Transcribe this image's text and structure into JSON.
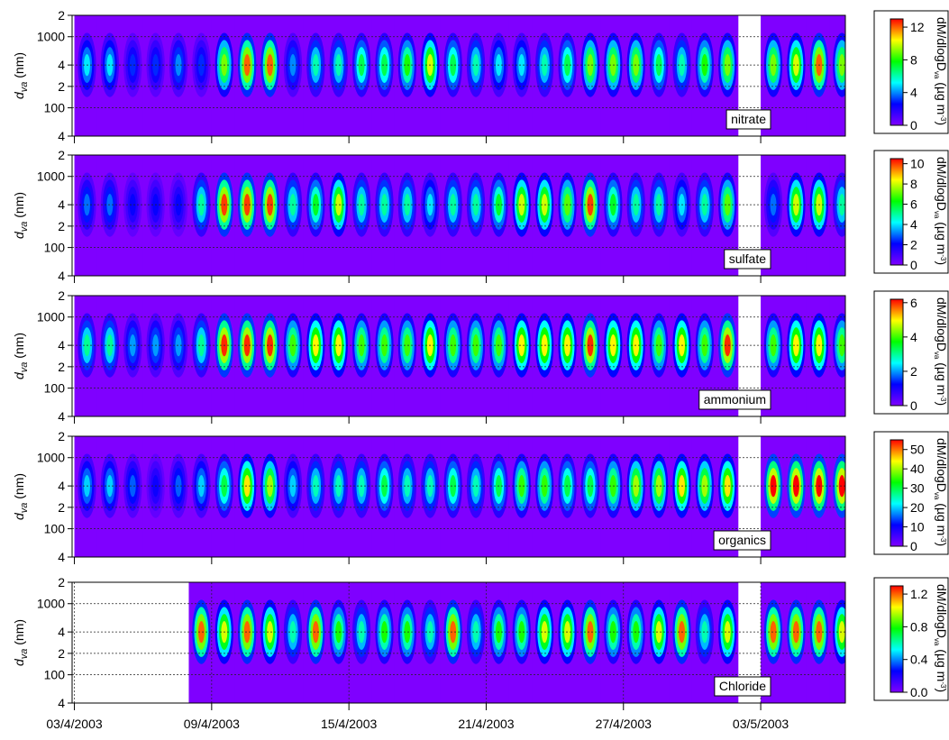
{
  "chart_data": [
    {
      "type": "heatmap",
      "label": "nitrate",
      "x": [
        0,
        1,
        2,
        3,
        4,
        5,
        6,
        7,
        8,
        9,
        10,
        11,
        12,
        13,
        14,
        15,
        16,
        17,
        18,
        19,
        20,
        21,
        22,
        23,
        24,
        25,
        26,
        27,
        28,
        29,
        30,
        31,
        32,
        33
      ],
      "values": [
        5,
        5,
        3,
        3,
        4,
        3,
        9,
        12,
        12,
        4,
        6,
        6,
        7,
        7,
        8,
        10,
        7,
        6,
        5,
        5,
        6,
        7,
        9,
        9,
        9,
        7,
        6,
        8,
        9,
        null,
        9,
        10,
        12,
        9
      ],
      "xlim": [
        -0.1,
        33.7
      ],
      "ylim": [
        40,
        2000
      ],
      "log_y": true,
      "yticks": [
        {
          "value": 2000,
          "label": "2"
        },
        1000,
        {
          "value": 400,
          "label": "4"
        },
        {
          "value": 200,
          "label": "2"
        },
        100,
        {
          "value": 40,
          "label": "4"
        }
      ],
      "ylabel": {
        "text": "d",
        "sub": "va",
        "unit": " (nm)"
      },
      "clim": [
        0,
        13
      ],
      "cticks": [
        0,
        4,
        8,
        12
      ],
      "clabel": {
        "text": "dM/dlogD",
        "sub": "va",
        "unit": " (µg m",
        "sup": "-3",
        "end": ")"
      },
      "colormap": [
        "#7f00ff",
        "#0000ff",
        "#00ffff",
        "#00ff00",
        "#ffff00",
        "#ff0000"
      ],
      "grid": true
    },
    {
      "type": "heatmap",
      "label": "sulfate",
      "x": [
        0,
        1,
        2,
        3,
        4,
        5,
        6,
        7,
        8,
        9,
        10,
        11,
        12,
        13,
        14,
        15,
        16,
        17,
        18,
        19,
        20,
        21,
        22,
        23,
        24,
        25,
        26,
        27,
        28,
        29,
        30,
        31,
        32,
        33
      ],
      "values": [
        3,
        3,
        2,
        2,
        2,
        5,
        10,
        10,
        10,
        5,
        6,
        8,
        5,
        5,
        5,
        4,
        5,
        5,
        6,
        8,
        8,
        7,
        10,
        6,
        5,
        5,
        4,
        5,
        7,
        null,
        3,
        8,
        8,
        5
      ],
      "xlim": [
        -0.1,
        33.7
      ],
      "ylim": [
        40,
        2000
      ],
      "log_y": true,
      "yticks": [
        {
          "value": 2000,
          "label": "2"
        },
        1000,
        {
          "value": 400,
          "label": "4"
        },
        {
          "value": 200,
          "label": "2"
        },
        100,
        {
          "value": 40,
          "label": "4"
        }
      ],
      "ylabel": {
        "text": "d",
        "sub": "va",
        "unit": " (nm)"
      },
      "clim": [
        0,
        10.5
      ],
      "cticks": [
        0,
        2,
        4,
        6,
        8,
        10
      ],
      "clabel": {
        "text": "dM/dlogD",
        "sub": "va",
        "unit": " (µg m",
        "sup": "-3",
        "end": ")"
      },
      "colormap": [
        "#7f00ff",
        "#0000ff",
        "#00ffff",
        "#00ff00",
        "#ffff00",
        "#ff0000"
      ],
      "grid": true
    },
    {
      "type": "heatmap",
      "label": "ammonium",
      "x": [
        0,
        1,
        2,
        3,
        4,
        5,
        6,
        7,
        8,
        9,
        10,
        11,
        12,
        13,
        14,
        15,
        16,
        17,
        18,
        19,
        20,
        21,
        22,
        23,
        24,
        25,
        26,
        27,
        28,
        29,
        30,
        31,
        32,
        33
      ],
      "values": [
        3,
        3,
        2,
        2,
        2,
        3,
        6,
        6,
        6,
        4,
        5,
        5,
        4,
        4,
        4,
        5,
        4,
        4,
        4,
        5,
        5,
        5,
        6,
        5,
        5,
        4,
        5,
        4,
        6,
        null,
        4,
        5,
        5,
        4
      ],
      "xlim": [
        -0.1,
        33.7
      ],
      "ylim": [
        40,
        2000
      ],
      "log_y": true,
      "yticks": [
        {
          "value": 2000,
          "label": "2"
        },
        1000,
        {
          "value": 400,
          "label": "4"
        },
        {
          "value": 200,
          "label": "2"
        },
        100,
        {
          "value": 40,
          "label": "4"
        }
      ],
      "ylabel": {
        "text": "d",
        "sub": "va",
        "unit": " (nm)"
      },
      "clim": [
        0,
        6.2
      ],
      "cticks": [
        0,
        2,
        4,
        6
      ],
      "clabel": {
        "text": "dM/dlogD",
        "sub": "va",
        "unit": " (µg m",
        "sup": "-3",
        "end": ")"
      },
      "colormap": [
        "#7f00ff",
        "#0000ff",
        "#00ffff",
        "#00ff00",
        "#ffff00",
        "#ff0000"
      ],
      "grid": true
    },
    {
      "type": "heatmap",
      "label": "organics",
      "x": [
        0,
        1,
        2,
        3,
        4,
        5,
        6,
        7,
        8,
        9,
        10,
        11,
        12,
        13,
        14,
        15,
        16,
        17,
        18,
        19,
        20,
        21,
        22,
        23,
        24,
        25,
        26,
        27,
        28,
        29,
        30,
        31,
        32,
        33
      ],
      "values": [
        20,
        20,
        15,
        10,
        15,
        20,
        30,
        45,
        40,
        20,
        25,
        25,
        25,
        30,
        25,
        25,
        30,
        25,
        30,
        35,
        35,
        30,
        30,
        35,
        40,
        40,
        45,
        40,
        45,
        null,
        55,
        55,
        55,
        55
      ],
      "xlim": [
        -0.1,
        33.7
      ],
      "ylim": [
        40,
        2000
      ],
      "log_y": true,
      "yticks": [
        {
          "value": 2000,
          "label": "2"
        },
        1000,
        {
          "value": 400,
          "label": "4"
        },
        {
          "value": 200,
          "label": "2"
        },
        100,
        {
          "value": 40,
          "label": "4"
        }
      ],
      "ylabel": {
        "text": "d",
        "sub": "va",
        "unit": " (nm)"
      },
      "clim": [
        0,
        55
      ],
      "cticks": [
        0,
        10,
        20,
        30,
        40,
        50
      ],
      "clabel": {
        "text": "dM/dlogD",
        "sub": "va",
        "unit": " (µg m",
        "sup": "-3",
        "end": ")"
      },
      "colormap": [
        "#7f00ff",
        "#0000ff",
        "#00ffff",
        "#00ff00",
        "#ffff00",
        "#ff0000"
      ],
      "grid": true
    },
    {
      "type": "heatmap",
      "label": "Chloride",
      "x": [
        0,
        1,
        2,
        3,
        4,
        5,
        6,
        7,
        8,
        9,
        10,
        11,
        12,
        13,
        14,
        15,
        16,
        17,
        18,
        19,
        20,
        21,
        22,
        23,
        24,
        25,
        26,
        27,
        28,
        29,
        30,
        31,
        32,
        33
      ],
      "values": [
        null,
        null,
        null,
        null,
        null,
        1.2,
        1.0,
        1.2,
        1.0,
        0.6,
        1.2,
        0.8,
        0.6,
        0.8,
        0.8,
        0.6,
        1.2,
        0.6,
        0.8,
        0.8,
        1.0,
        1.0,
        1.2,
        0.8,
        0.8,
        1.0,
        1.2,
        0.6,
        1.0,
        null,
        1.2,
        1.2,
        1.2,
        1.0
      ],
      "xlim": [
        -0.1,
        33.7
      ],
      "ylim": [
        40,
        2000
      ],
      "log_y": true,
      "yticks": [
        {
          "value": 2000,
          "label": "2"
        },
        1000,
        {
          "value": 400,
          "label": "4"
        },
        {
          "value": 200,
          "label": "2"
        },
        100,
        {
          "value": 40,
          "label": "4"
        }
      ],
      "xticks": [
        {
          "value": 0,
          "label": "03/4/2003"
        },
        {
          "value": 6,
          "label": "09/4/2003"
        },
        {
          "value": 12,
          "label": "15/4/2003"
        },
        {
          "value": 18,
          "label": "21/4/2003"
        },
        {
          "value": 24,
          "label": "27/4/2003"
        },
        {
          "value": 30,
          "label": "03/5/2003"
        }
      ],
      "ylabel": {
        "text": "d",
        "sub": "va",
        "unit": " (nm)"
      },
      "clim": [
        0,
        1.3
      ],
      "cticks": [
        {
          "value": 0,
          "label": "0.0"
        },
        0.4,
        0.8,
        1.2
      ],
      "clabel": {
        "text": "dM/dlogD",
        "sub": "va",
        "unit": " (µg m",
        "sup": "-3",
        "end": ")"
      },
      "colormap": [
        "#7f00ff",
        "#0000ff",
        "#00ffff",
        "#00ff00",
        "#ffff00",
        "#ff0000"
      ],
      "grid": true
    }
  ]
}
